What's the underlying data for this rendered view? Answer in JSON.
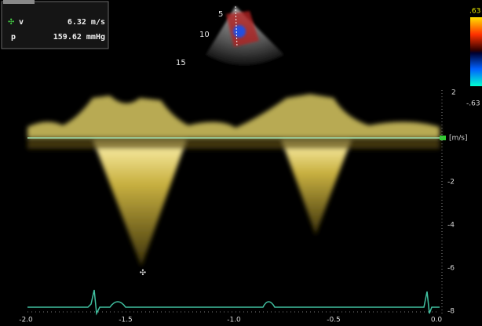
{
  "readout": {
    "v_label": "v",
    "v_value": "6.32 m/s",
    "p_label": "p",
    "p_value": "159.62 mmHg"
  },
  "sector_depths": [
    "5",
    "10",
    "15"
  ],
  "color_scale": {
    "top": ".63",
    "bottom": "-.63"
  },
  "velocity_axis": {
    "unit": "[m/s]",
    "ticks": [
      "2",
      "-2",
      "-4",
      "-6",
      "-8"
    ]
  },
  "time_axis": {
    "ticks": [
      "-2.0",
      "-1.5",
      "-1.0",
      "-0.5",
      "0.0"
    ]
  }
}
